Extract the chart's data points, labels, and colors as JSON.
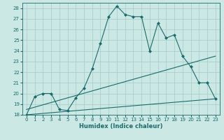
{
  "xlabel": "Humidex (Indice chaleur)",
  "bg_color": "#cce8e4",
  "grid_color": "#aad0cc",
  "line_color": "#1a6b6b",
  "xlim": [
    -0.5,
    23.5
  ],
  "ylim": [
    18,
    28.5
  ],
  "xticks": [
    0,
    1,
    2,
    3,
    4,
    5,
    6,
    7,
    8,
    9,
    10,
    11,
    12,
    13,
    14,
    15,
    16,
    17,
    18,
    19,
    20,
    21,
    22,
    23
  ],
  "yticks": [
    18,
    19,
    20,
    21,
    22,
    23,
    24,
    25,
    26,
    27,
    28
  ],
  "line1_x": [
    0,
    1,
    2,
    3,
    4,
    5,
    6,
    7,
    8,
    9,
    10,
    11,
    12,
    13,
    14,
    15,
    16,
    17,
    18,
    19,
    20,
    21,
    22,
    23
  ],
  "line1_y": [
    18.0,
    19.7,
    20.0,
    20.0,
    18.5,
    18.4,
    19.6,
    20.5,
    22.3,
    24.7,
    27.2,
    28.2,
    27.4,
    27.2,
    27.2,
    24.0,
    26.6,
    25.2,
    25.5,
    23.5,
    22.5,
    21.0,
    21.0,
    19.5
  ],
  "line2_x": [
    0,
    23
  ],
  "line2_y": [
    18.5,
    23.5
  ],
  "line3_x": [
    0,
    23
  ],
  "line3_y": [
    18.0,
    19.5
  ]
}
